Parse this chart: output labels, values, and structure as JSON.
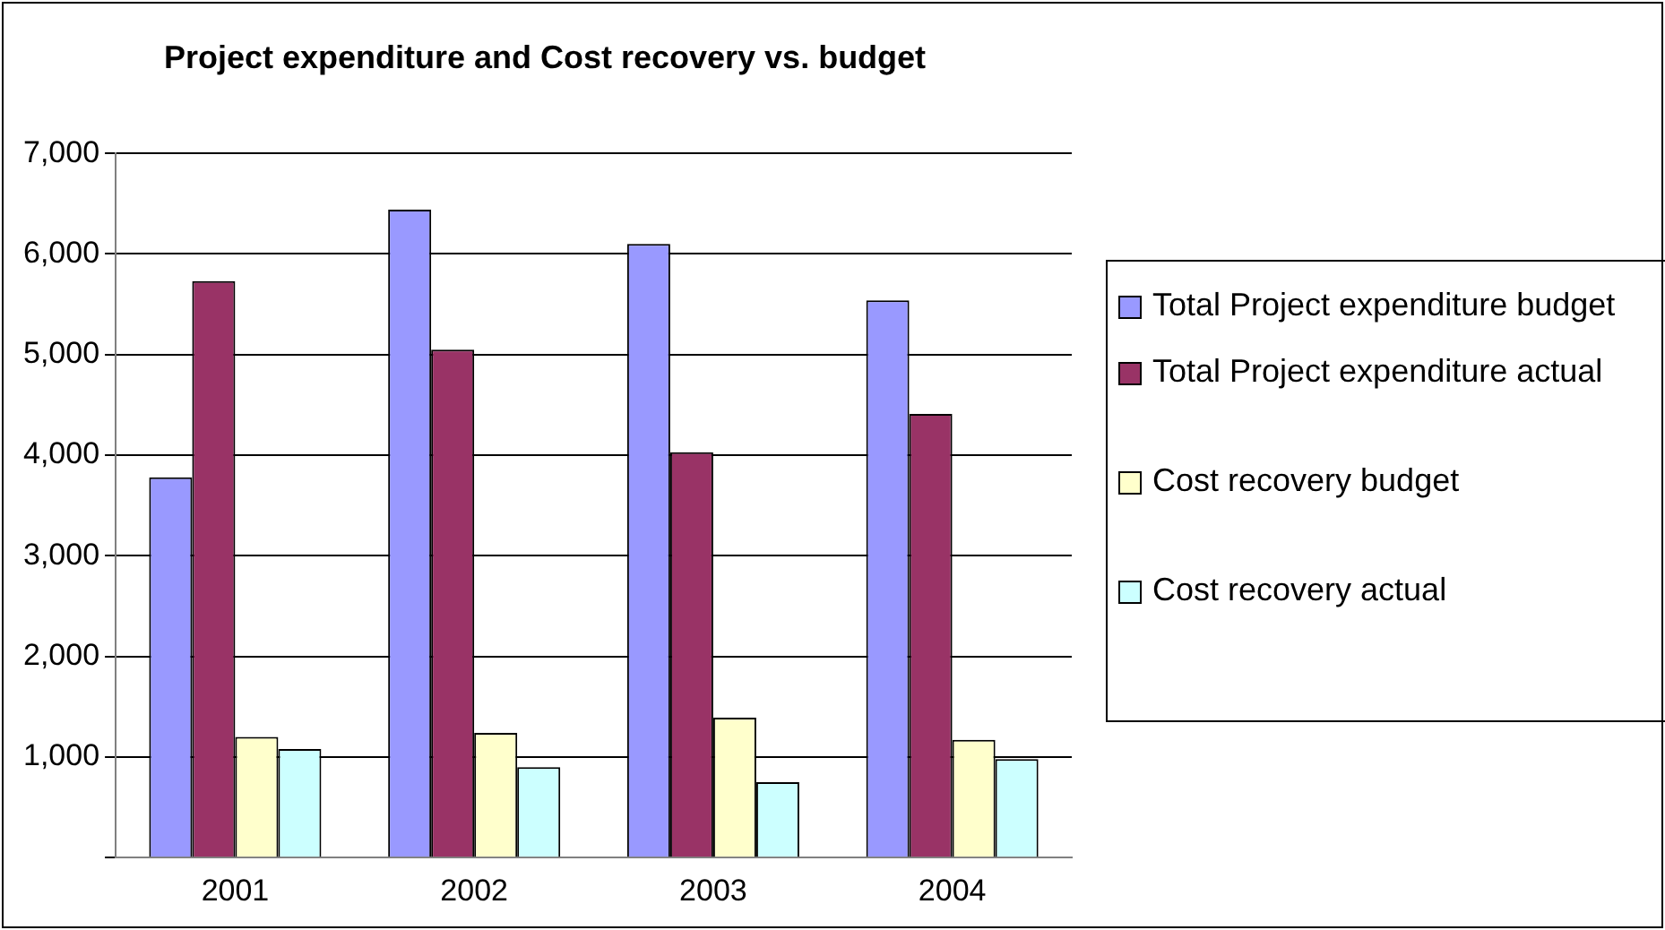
{
  "chart_data": {
    "type": "bar",
    "title": "Project expenditure and Cost recovery vs. budget",
    "categories": [
      "2001",
      "2002",
      "2003",
      "2004"
    ],
    "series": [
      {
        "name": "Total Project expenditure budget",
        "color": "#9999ff",
        "values": [
          3780,
          6440,
          6100,
          5540
        ]
      },
      {
        "name": "Total Project expenditure actual",
        "color": "#993366",
        "values": [
          5730,
          5050,
          4030,
          4410
        ]
      },
      {
        "name": "Cost recovery budget",
        "color": "#ffffcc",
        "values": [
          1200,
          1240,
          1390,
          1170
        ]
      },
      {
        "name": "Cost recovery actual",
        "color": "#ccffff",
        "values": [
          1080,
          900,
          750,
          980
        ]
      }
    ],
    "ylim": [
      0,
      7000
    ],
    "yticks": [
      {
        "value": 0,
        "label": null
      },
      {
        "value": 1000,
        "label": "1,000"
      },
      {
        "value": 2000,
        "label": "2,000"
      },
      {
        "value": 3000,
        "label": "3,000"
      },
      {
        "value": 4000,
        "label": "4,000"
      },
      {
        "value": 5000,
        "label": "5,000"
      },
      {
        "value": 6000,
        "label": "6,000"
      },
      {
        "value": 7000,
        "label": "7,000"
      }
    ],
    "grid": "y",
    "legend": "right"
  }
}
